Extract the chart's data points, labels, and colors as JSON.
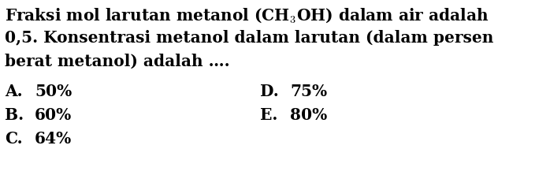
{
  "background_color": "#ffffff",
  "text_color": "#000000",
  "line1": "Fraksi mol larutan metanol (CH$_3$OH) dalam air adalah",
  "line2": "0,5. Konsentrasi metanol dalam larutan (dalam persen",
  "line3": "berat metanol) adalah ….",
  "options_left": [
    {
      "label": "A.",
      "value": "50%"
    },
    {
      "label": "B.",
      "value": "60%"
    },
    {
      "label": "C.",
      "value": "64%"
    }
  ],
  "options_right": [
    {
      "label": "D.",
      "value": "75%"
    },
    {
      "label": "E.",
      "value": "80%"
    }
  ],
  "font_size": 14.5,
  "font_family": "serif",
  "fig_width": 6.98,
  "fig_height": 2.41,
  "dpi": 100
}
